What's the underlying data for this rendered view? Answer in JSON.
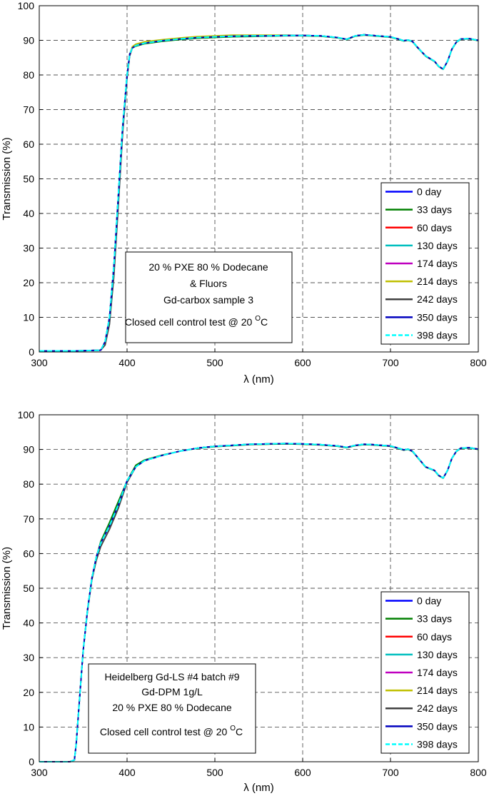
{
  "chart_data": [
    {
      "type": "line",
      "xlabel": "λ (nm)",
      "ylabel": "Transmission (%)",
      "xlim": [
        300,
        800
      ],
      "ylim": [
        0,
        100
      ],
      "x_ticks": [
        300,
        400,
        500,
        600,
        700,
        800
      ],
      "y_ticks": [
        0,
        10,
        20,
        30,
        40,
        50,
        60,
        70,
        80,
        90,
        100
      ],
      "grid": true,
      "legend_position": "bottom-right",
      "annotation": [
        {
          "text": "20 % PXE 80 % Dodecane"
        },
        {
          "text": "& Fluors"
        },
        {
          "text": "Gd-carbox sample 3"
        },
        {
          "text": "Closed cell control test @ 20 ",
          "sup": "O",
          "suffix": "C"
        }
      ],
      "x": [
        300,
        340,
        370,
        375,
        380,
        385,
        390,
        395,
        400,
        403,
        406,
        410,
        420,
        440,
        460,
        480,
        500,
        520,
        540,
        560,
        580,
        600,
        620,
        640,
        650,
        660,
        670,
        680,
        690,
        700,
        710,
        715,
        720,
        725,
        730,
        740,
        750,
        755,
        760,
        765,
        770,
        775,
        780,
        790,
        800
      ],
      "series": [
        {
          "name": "0 day",
          "color": "#0000ff",
          "dash": false,
          "values": [
            0.3,
            0.3,
            0.5,
            3,
            10,
            25,
            45,
            65,
            80,
            86,
            87.8,
            88.5,
            89.2,
            89.9,
            90.4,
            90.8,
            91,
            91.2,
            91.3,
            91.3,
            91.4,
            91.4,
            91.3,
            90.8,
            90.3,
            91.3,
            91.6,
            91.4,
            91.2,
            91,
            90.3,
            89.9,
            90.1,
            89.7,
            88.2,
            85.5,
            84,
            82.5,
            81.7,
            84,
            87.5,
            89.5,
            90.4,
            90.5,
            90
          ]
        },
        {
          "name": "33 days",
          "color": "#008000",
          "dash": false,
          "values": [
            0.3,
            0.3,
            0.5,
            3,
            10,
            25,
            45,
            65,
            80,
            86,
            87.8,
            88.3,
            89,
            89.7,
            90.2,
            90.6,
            90.8,
            91,
            91.1,
            91.2,
            91.3,
            91.3,
            91.2,
            90.7,
            90.2,
            91.2,
            91.5,
            91.3,
            91.1,
            90.9,
            90.2,
            89.8,
            90,
            89.6,
            88.1,
            85.4,
            83.9,
            82.4,
            81.6,
            83.9,
            87.4,
            89.4,
            90.3,
            90.4,
            89.9
          ]
        },
        {
          "name": "60 days",
          "color": "#ff0000",
          "dash": false,
          "values": [
            0.3,
            0.3,
            0.5,
            3,
            10,
            25,
            45,
            65,
            80,
            86,
            87.8,
            88.5,
            89.2,
            89.9,
            90.4,
            90.8,
            91,
            91.2,
            91.3,
            91.3,
            91.4,
            91.4,
            91.3,
            90.8,
            90.3,
            91.3,
            91.6,
            91.4,
            91.2,
            91,
            90.3,
            89.9,
            90.1,
            89.7,
            88.2,
            85.5,
            84,
            82.5,
            81.7,
            84,
            87.5,
            89.5,
            90.4,
            90.5,
            90
          ]
        },
        {
          "name": "130 days",
          "color": "#00bfbf",
          "dash": false,
          "values": [
            0.3,
            0.3,
            0.5,
            3,
            10,
            25,
            45,
            65,
            80,
            86,
            87.8,
            88.5,
            89.2,
            89.9,
            90.4,
            90.8,
            91,
            91.2,
            91.3,
            91.3,
            91.4,
            91.4,
            91.3,
            90.8,
            90.3,
            91.3,
            91.6,
            91.4,
            91.2,
            91,
            90.3,
            89.9,
            90.1,
            89.7,
            88.2,
            85.5,
            84,
            82.5,
            81.7,
            84,
            87.5,
            89.5,
            90.4,
            90.5,
            90
          ]
        },
        {
          "name": "174 days",
          "color": "#bf00bf",
          "dash": false,
          "values": [
            0.3,
            0.3,
            0.5,
            3,
            10,
            25,
            45,
            65,
            80,
            86,
            87.8,
            88.5,
            89.2,
            89.9,
            90.4,
            90.8,
            91,
            91.2,
            91.3,
            91.3,
            91.4,
            91.4,
            91.3,
            90.8,
            90.3,
            91.3,
            91.6,
            91.4,
            91.2,
            91,
            90.3,
            89.9,
            90.1,
            89.7,
            88.2,
            85.5,
            84,
            82.5,
            81.7,
            84,
            87.5,
            89.5,
            90.4,
            90.5,
            90
          ]
        },
        {
          "name": "214 days",
          "color": "#bfbf00",
          "dash": false,
          "values": [
            0.3,
            0.3,
            0.5,
            3,
            10,
            25,
            45,
            65,
            80,
            86,
            88.2,
            88.9,
            89.6,
            90.2,
            90.7,
            91.1,
            91.3,
            91.5,
            91.5,
            91.5,
            91.5,
            91.4,
            91.3,
            90.8,
            90.3,
            91.3,
            91.6,
            91.4,
            91.2,
            91,
            90.3,
            89.9,
            90.1,
            89.7,
            88.2,
            85.5,
            84,
            82.5,
            81.7,
            84,
            87.5,
            89.5,
            90.4,
            90.5,
            90
          ]
        },
        {
          "name": "242 days",
          "color": "#404040",
          "dash": false,
          "values": [
            0.3,
            0.3,
            0.5,
            2,
            8,
            22,
            42,
            63,
            79,
            85.5,
            87.8,
            88.5,
            89.2,
            89.9,
            90.4,
            90.8,
            91,
            91.2,
            91.3,
            91.3,
            91.4,
            91.4,
            91.3,
            90.8,
            90.3,
            91.3,
            91.6,
            91.4,
            91.2,
            91,
            90.3,
            89.9,
            90.1,
            89.7,
            88.2,
            85.5,
            84,
            82.5,
            81.7,
            84,
            87.5,
            89.5,
            90.4,
            90.5,
            90
          ]
        },
        {
          "name": "350 days",
          "color": "#0000bf",
          "dash": false,
          "values": [
            0.3,
            0.3,
            0.5,
            3,
            10,
            25,
            45,
            65,
            80,
            86,
            87.8,
            88.5,
            89.2,
            89.9,
            90.4,
            90.8,
            91,
            91.2,
            91.3,
            91.3,
            91.4,
            91.4,
            91.3,
            90.8,
            90.3,
            91.3,
            91.6,
            91.4,
            91.2,
            91,
            90.3,
            89.9,
            90.1,
            89.7,
            88.2,
            85.5,
            84,
            82.5,
            81.7,
            84,
            87.5,
            89.5,
            90.4,
            90.5,
            90
          ]
        },
        {
          "name": "398 days",
          "color": "#00ffff",
          "dash": true,
          "values": [
            0.3,
            0.3,
            0.5,
            3,
            10,
            25,
            45,
            65,
            80,
            86,
            87.8,
            88.5,
            89.2,
            89.9,
            90.4,
            90.8,
            91,
            91.2,
            91.3,
            91.3,
            91.4,
            91.4,
            91.3,
            90.8,
            90.3,
            91.3,
            91.6,
            91.4,
            91.2,
            91,
            90.3,
            89.9,
            90.1,
            89.7,
            88.2,
            85.5,
            84,
            82.5,
            81.7,
            84,
            87.5,
            89.5,
            90.4,
            90.5,
            90
          ]
        }
      ]
    },
    {
      "type": "line",
      "xlabel": "λ (nm)",
      "ylabel": "Transmission (%)",
      "xlim": [
        300,
        800
      ],
      "ylim": [
        0,
        100
      ],
      "x_ticks": [
        300,
        400,
        500,
        600,
        700,
        800
      ],
      "y_ticks": [
        0,
        10,
        20,
        30,
        40,
        50,
        60,
        70,
        80,
        90,
        100
      ],
      "grid": true,
      "legend_position": "bottom-right",
      "annotation": [
        {
          "text": "Heidelberg Gd-LS #4 batch #9"
        },
        {
          "text": "Gd-DPM 1g/L"
        },
        {
          "text": "20 % PXE 80 % Dodecane"
        },
        {
          "text": "Closed cell control test @ 20 ",
          "sup": "O",
          "suffix": "C"
        }
      ],
      "x": [
        300,
        335,
        340,
        342,
        345,
        350,
        355,
        360,
        365,
        370,
        380,
        390,
        400,
        410,
        420,
        440,
        460,
        480,
        500,
        520,
        540,
        560,
        580,
        600,
        620,
        640,
        650,
        660,
        670,
        680,
        690,
        700,
        710,
        715,
        720,
        725,
        730,
        740,
        750,
        755,
        760,
        765,
        770,
        775,
        780,
        790,
        800
      ],
      "series": [
        {
          "name": "0 day",
          "color": "#0000ff",
          "dash": false,
          "values": [
            0,
            0,
            0.5,
            5,
            15,
            32,
            44,
            53,
            59,
            63,
            68,
            74,
            81,
            85,
            86.8,
            88.3,
            89.5,
            90.4,
            90.9,
            91.2,
            91.5,
            91.6,
            91.7,
            91.6,
            91.4,
            91,
            90.6,
            91.2,
            91.5,
            91.4,
            91.2,
            91,
            90.3,
            89.9,
            90.1,
            89.5,
            88,
            85,
            84,
            82.5,
            81.8,
            84,
            87.5,
            89.5,
            90.4,
            90.5,
            90.1
          ]
        },
        {
          "name": "33 days",
          "color": "#008000",
          "dash": false,
          "values": [
            0,
            0,
            0.5,
            5,
            15,
            32,
            44,
            53,
            59,
            63.5,
            69,
            75,
            81,
            85.5,
            87,
            88.4,
            89.5,
            90.3,
            90.8,
            91.1,
            91.4,
            91.5,
            91.6,
            91.5,
            91.3,
            90.9,
            90.5,
            91.1,
            91.4,
            91.3,
            91.1,
            90.9,
            90.2,
            89.8,
            90,
            89.4,
            87.9,
            84.9,
            83.9,
            82.4,
            81.7,
            83.9,
            87.4,
            89.4,
            90.3,
            90.4,
            90
          ]
        },
        {
          "name": "60 days",
          "color": "#ff0000",
          "dash": false,
          "values": [
            0,
            0,
            0.5,
            5,
            15,
            32,
            44,
            53,
            59,
            63,
            68,
            74,
            81,
            85,
            86.8,
            88.3,
            89.5,
            90.4,
            90.9,
            91.2,
            91.5,
            91.6,
            91.7,
            91.6,
            91.4,
            91,
            90.6,
            91.2,
            91.5,
            91.4,
            91.2,
            91,
            90.3,
            89.9,
            90.1,
            89.5,
            88,
            85,
            84,
            82.5,
            81.8,
            84,
            87.5,
            89.5,
            90.4,
            90.5,
            90.1
          ]
        },
        {
          "name": "130 days",
          "color": "#00bfbf",
          "dash": false,
          "values": [
            0,
            0,
            0.5,
            5,
            15,
            32,
            44,
            53,
            59,
            63,
            68,
            74,
            81,
            85,
            86.8,
            88.3,
            89.5,
            90.4,
            90.9,
            91.2,
            91.5,
            91.6,
            91.7,
            91.6,
            91.4,
            91,
            90.6,
            91.2,
            91.5,
            91.4,
            91.2,
            91,
            90.3,
            89.9,
            90.1,
            89.5,
            88,
            85,
            84,
            82.5,
            81.8,
            84,
            87.5,
            89.5,
            90.4,
            90.5,
            90.1
          ]
        },
        {
          "name": "174 days",
          "color": "#bf00bf",
          "dash": false,
          "values": [
            0,
            0,
            0.5,
            5,
            15,
            32,
            44,
            53,
            59,
            63,
            68,
            74,
            81,
            85,
            86.8,
            88.3,
            89.5,
            90.4,
            90.9,
            91.2,
            91.5,
            91.6,
            91.7,
            91.6,
            91.4,
            91,
            90.6,
            91.2,
            91.5,
            91.4,
            91.2,
            91,
            90.3,
            89.9,
            90.1,
            89.5,
            88,
            85,
            84,
            82.5,
            81.8,
            84,
            87.5,
            89.5,
            90.4,
            90.5,
            90.1
          ]
        },
        {
          "name": "214 days",
          "color": "#bfbf00",
          "dash": false,
          "values": [
            0,
            0,
            0.5,
            5,
            15,
            32,
            44,
            53,
            59,
            63,
            68,
            74,
            81,
            85,
            86.8,
            88.3,
            89.5,
            90.4,
            90.9,
            91.2,
            91.5,
            91.6,
            91.7,
            91.6,
            91.4,
            91,
            90.6,
            91.2,
            91.5,
            91.4,
            91.2,
            91,
            90.3,
            89.9,
            90.1,
            89.5,
            88,
            85,
            84,
            82.5,
            81.8,
            84,
            87.5,
            89.5,
            90.4,
            90.5,
            90.1
          ]
        },
        {
          "name": "242 days",
          "color": "#404040",
          "dash": false,
          "values": [
            0,
            0,
            0.5,
            5,
            15,
            32,
            43.5,
            52.5,
            58,
            62,
            67,
            73,
            80.5,
            85,
            86.8,
            88.3,
            89.5,
            90.4,
            90.9,
            91.2,
            91.5,
            91.6,
            91.7,
            91.6,
            91.4,
            91,
            90.6,
            91.2,
            91.5,
            91.4,
            91.2,
            91,
            90.3,
            89.9,
            90.1,
            89.5,
            88,
            85,
            84,
            82.5,
            81.8,
            84,
            87.5,
            89.5,
            90.4,
            90.5,
            90.1
          ]
        },
        {
          "name": "350 days",
          "color": "#0000bf",
          "dash": false,
          "values": [
            0,
            0,
            0.5,
            5,
            15,
            32,
            44,
            53,
            59,
            63,
            68,
            74,
            81,
            85,
            86.8,
            88.3,
            89.5,
            90.4,
            90.9,
            91.2,
            91.5,
            91.6,
            91.7,
            91.6,
            91.4,
            91,
            90.6,
            91.2,
            91.5,
            91.4,
            91.2,
            91,
            90.3,
            89.9,
            90.1,
            89.5,
            88,
            85,
            84,
            82.5,
            81.8,
            84,
            87.5,
            89.5,
            90.4,
            90.5,
            90.1
          ]
        },
        {
          "name": "398 days",
          "color": "#00ffff",
          "dash": true,
          "values": [
            0,
            0,
            0.5,
            5,
            15,
            32,
            44,
            53,
            59,
            63,
            68,
            74,
            81,
            85,
            86.8,
            88.3,
            89.5,
            90.4,
            90.9,
            91.2,
            91.5,
            91.6,
            91.7,
            91.6,
            91.4,
            91,
            90.6,
            91.2,
            91.5,
            91.4,
            91.2,
            91,
            90.3,
            89.9,
            90.1,
            89.5,
            88,
            85,
            84,
            82.5,
            81.8,
            84,
            87.5,
            89.5,
            90.4,
            90.5,
            90.1
          ]
        }
      ]
    }
  ]
}
